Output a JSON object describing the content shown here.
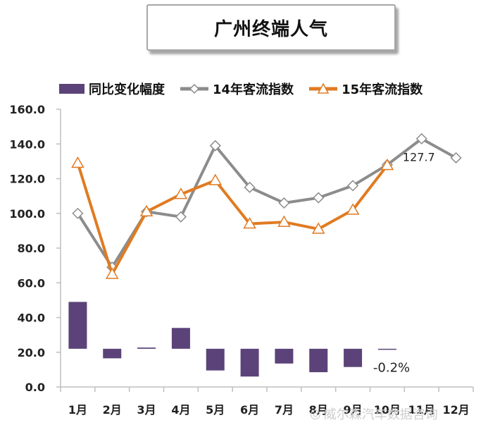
{
  "title": "广州终端人气",
  "legend": {
    "bar": "同比变化幅度",
    "line14": "14年客流指数",
    "line15": "15年客流指数"
  },
  "watermark": "威尔森汽车数据咨询",
  "colors": {
    "bar": "#5b4379",
    "line14": "#8c8c8c",
    "line15": "#e07b22",
    "axis": "#bfbfbf"
  },
  "chart_data": {
    "type": "bar+line",
    "categories": [
      "1月",
      "2月",
      "3月",
      "4月",
      "5月",
      "6月",
      "7月",
      "8月",
      "9月",
      "10月",
      "11月",
      "12月"
    ],
    "y_ticks": [
      "0.0",
      "20.0",
      "40.0",
      "60.0",
      "80.0",
      "100.0",
      "120.0",
      "140.0",
      "160.0"
    ],
    "ylim": [
      0,
      160
    ],
    "bar_baseline": 22,
    "series": [
      {
        "name": "14年客流指数",
        "type": "line",
        "marker": "diamond",
        "values": [
          100,
          69,
          101,
          98,
          139,
          115,
          106,
          109,
          116,
          128,
          143,
          132
        ]
      },
      {
        "name": "15年客流指数",
        "type": "line",
        "marker": "triangle",
        "values": [
          129,
          65,
          101,
          111,
          119,
          94,
          95,
          91,
          102,
          127.7,
          null,
          null
        ]
      },
      {
        "name": "同比变化幅度",
        "type": "bar",
        "values": [
          49,
          16.5,
          22.7,
          34,
          9.5,
          6,
          13.5,
          8.5,
          11.5,
          21.7,
          null,
          null
        ]
      }
    ],
    "annotations": [
      "127.7",
      "-0.2%"
    ]
  }
}
